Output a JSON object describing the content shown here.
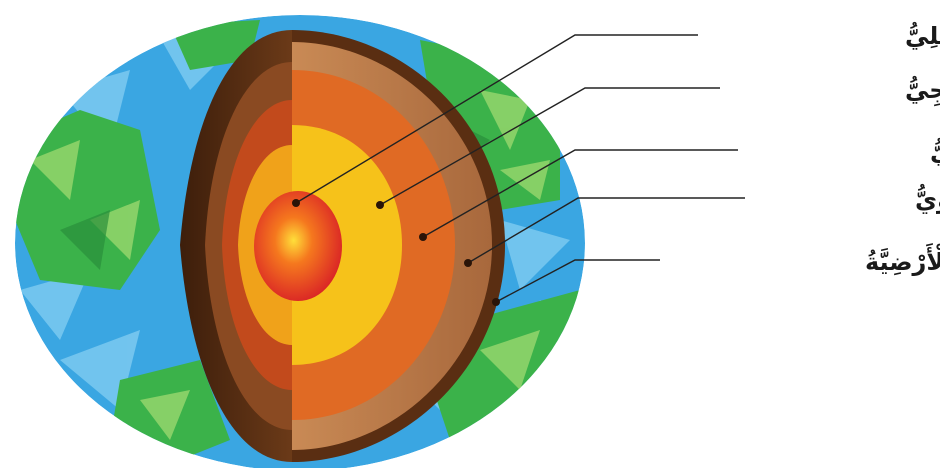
{
  "diagram": {
    "layers": [
      {
        "id": "inner-core",
        "label": "اللُّبُّ الدّاخِلِيُّ",
        "color": "#e8242a"
      },
      {
        "id": "outer-core",
        "label": "اللُّبُّ الْخارِجِيُّ",
        "color": "#f6c21a"
      },
      {
        "id": "lower-mantle",
        "label": "السِّتارُ السُّفْلِيُّ",
        "color": "#e06a24"
      },
      {
        "id": "upper-mantle",
        "label": "السِّتارُ الْعُلْوِيُّ",
        "color": "#b97a4a"
      },
      {
        "id": "crust",
        "label": "الْقِشْرَةُ الْأَرْضِيَّةُ",
        "color": "#5a2e12"
      }
    ],
    "colors": {
      "ocean": "#3aa6e2",
      "ocean_light": "#7cc9f0",
      "land": "#3bb24a",
      "land_light": "#8fd36a",
      "leader": "#222222"
    }
  }
}
